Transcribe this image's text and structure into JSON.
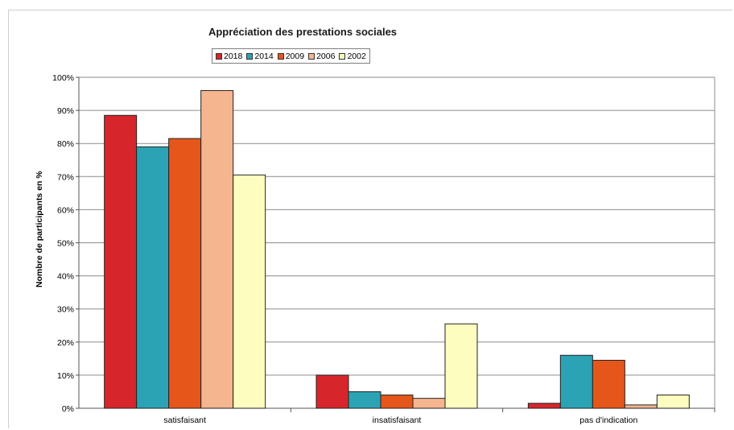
{
  "chart_data": {
    "type": "bar",
    "title": "Appréciation des prestations sociales",
    "ylabel": "Nombre de participants en %",
    "xlabel": "",
    "ylim": [
      0,
      100
    ],
    "yticks": [
      "0%",
      "10%",
      "20%",
      "30%",
      "40%",
      "50%",
      "60%",
      "70%",
      "80%",
      "90%",
      "100%"
    ],
    "categories": [
      "satisfaisant",
      "insatisfaisant",
      "pas d'indication"
    ],
    "legend_position": "top",
    "grid": true,
    "series": [
      {
        "name": "2018",
        "color": "#d7262b",
        "values": [
          88.5,
          10,
          1.5
        ]
      },
      {
        "name": "2014",
        "color": "#2ba3b4",
        "values": [
          79,
          5,
          16
        ]
      },
      {
        "name": "2009",
        "color": "#e5561b",
        "values": [
          81.5,
          4,
          14.5
        ]
      },
      {
        "name": "2006",
        "color": "#f5b58e",
        "values": [
          96,
          3,
          1
        ]
      },
      {
        "name": "2002",
        "color": "#fdfdc0",
        "values": [
          70.5,
          25.5,
          4
        ]
      }
    ]
  }
}
